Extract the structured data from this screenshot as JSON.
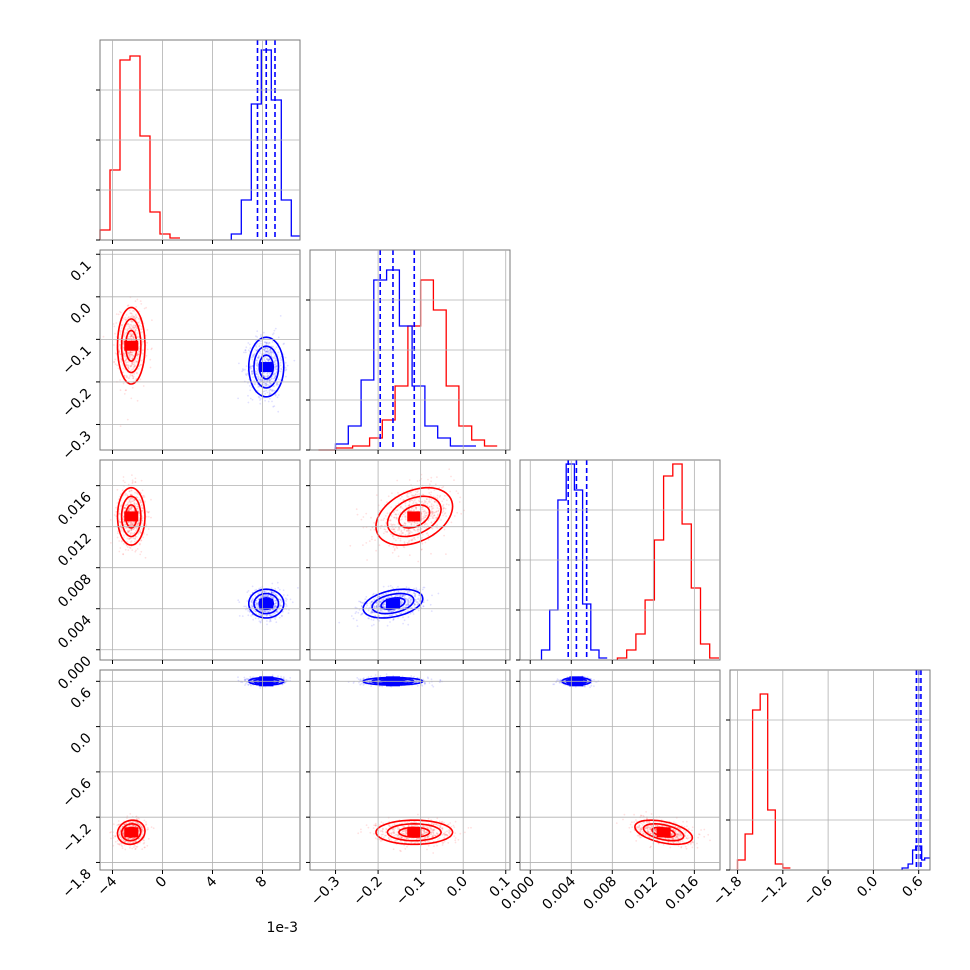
{
  "chart_data": {
    "type": "scatter",
    "title": "",
    "n_params": 4,
    "colors": {
      "A": "#ff0000",
      "B": "#0000ff"
    },
    "grid": true,
    "axis_offset_text": "1e-3",
    "params": [
      {
        "range": [
          -5.0,
          11.0
        ],
        "ticks": [
          -4,
          0,
          4,
          8
        ],
        "tick_labels": [
          "−4",
          "0",
          "4",
          "8"
        ]
      },
      {
        "range": [
          -0.36,
          0.11
        ],
        "ticks": [
          -0.3,
          -0.2,
          -0.1,
          0.0,
          0.1
        ],
        "tick_labels": [
          "−0.3",
          "−0.2",
          "−0.1",
          "0.0",
          "0.1"
        ]
      },
      {
        "range": [
          -0.001,
          0.0185
        ],
        "ticks": [
          0.0,
          0.004,
          0.008,
          0.012,
          0.016
        ],
        "tick_labels": [
          "0.000",
          "0.004",
          "0.008",
          "0.012",
          "0.016"
        ]
      },
      {
        "range": [
          -1.9,
          0.75
        ],
        "ticks": [
          -1.8,
          -1.2,
          -0.6,
          0.0,
          0.6
        ],
        "tick_labels": [
          "−1.8",
          "−1.2",
          "−0.6",
          "0.0",
          "0.6"
        ]
      }
    ],
    "series": [
      {
        "key": "A",
        "color": "#ff0000",
        "mean": [
          -2.5,
          -0.115,
          0.013,
          -1.4
        ],
        "std": [
          0.55,
          0.045,
          0.0014,
          0.08
        ],
        "corr": [
          [
            1,
            0,
            0,
            0.1
          ],
          [
            0,
            1,
            0.35,
            0
          ],
          [
            0,
            0.35,
            1,
            -0.45
          ],
          [
            0.1,
            0,
            -0.45,
            1
          ]
        ],
        "quantiles": [],
        "hist": [
          {
            "bins": [
              -5,
              -4.2,
              -3.4,
              -2.6,
              -1.8,
              -1.0,
              -0.2,
              0.6,
              1.4
            ],
            "counts": [
              0.05,
              0.35,
              0.9,
              0.92,
              0.52,
              0.14,
              0.03,
              0.01
            ]
          },
          {
            "bins": [
              -0.34,
              -0.3,
              -0.26,
              -0.22,
              -0.19,
              -0.16,
              -0.13,
              -0.1,
              -0.07,
              -0.04,
              -0.01,
              0.02,
              0.05,
              0.08
            ],
            "counts": [
              0,
              0.01,
              0.02,
              0.06,
              0.15,
              0.32,
              0.62,
              0.85,
              0.7,
              0.32,
              0.12,
              0.05,
              0.02
            ]
          },
          {
            "bins": [
              0.0085,
              0.0094,
              0.0103,
              0.0112,
              0.0121,
              0.013,
              0.0139,
              0.0148,
              0.0157,
              0.0166,
              0.0175,
              0.0184
            ],
            "counts": [
              0.01,
              0.05,
              0.13,
              0.3,
              0.6,
              0.92,
              0.98,
              0.68,
              0.36,
              0.08,
              0.01
            ]
          },
          {
            "bins": [
              -1.8,
              -1.7,
              -1.6,
              -1.5,
              -1.4,
              -1.3,
              -1.2,
              -1.1
            ],
            "counts": [
              0.05,
              0.18,
              0.8,
              0.88,
              0.3,
              0.03,
              0.01
            ]
          }
        ]
      },
      {
        "key": "B",
        "color": "#0000ff",
        "mean": [
          8.3,
          -0.165,
          0.0045,
          0.6
        ],
        "std": [
          0.7,
          0.035,
          0.0007,
          0.025
        ],
        "corr": [
          [
            1,
            0,
            0,
            0
          ],
          [
            0,
            1,
            0.35,
            0
          ],
          [
            0,
            0.35,
            1,
            0
          ],
          [
            0,
            0,
            0,
            1
          ]
        ],
        "quantiles": [
          [
            7.6,
            8.3,
            9.0
          ],
          [
            -0.195,
            -0.165,
            -0.115
          ],
          [
            0.0037,
            0.0045,
            0.0055
          ],
          [
            0.57,
            0.6,
            0.63
          ]
        ],
        "hist": [
          {
            "bins": [
              5.5,
              6.3,
              7.1,
              7.9,
              8.7,
              9.5,
              10.3,
              11.1
            ],
            "counts": [
              0.03,
              0.2,
              0.68,
              0.95,
              0.7,
              0.2,
              0.02
            ]
          },
          {
            "bins": [
              -0.3,
              -0.27,
              -0.24,
              -0.21,
              -0.18,
              -0.15,
              -0.12,
              -0.09,
              -0.06,
              -0.03,
              0.0,
              0.03
            ],
            "counts": [
              0.03,
              0.12,
              0.35,
              0.85,
              0.9,
              0.62,
              0.32,
              0.12,
              0.06,
              0.02,
              0.02
            ]
          },
          {
            "bins": [
              0.0011,
              0.0019,
              0.0027,
              0.0035,
              0.0043,
              0.0051,
              0.0059,
              0.0067,
              0.0075
            ],
            "counts": [
              0.05,
              0.25,
              0.8,
              0.98,
              0.85,
              0.28,
              0.05,
              0.01
            ]
          },
          {
            "bins": [
              0.38,
              0.46,
              0.52,
              0.56,
              0.6,
              0.64,
              0.68,
              0.75
            ],
            "counts": [
              0.01,
              0.03,
              0.1,
              0.12,
              0.12,
              0.05,
              0.06
            ]
          }
        ]
      }
    ]
  }
}
